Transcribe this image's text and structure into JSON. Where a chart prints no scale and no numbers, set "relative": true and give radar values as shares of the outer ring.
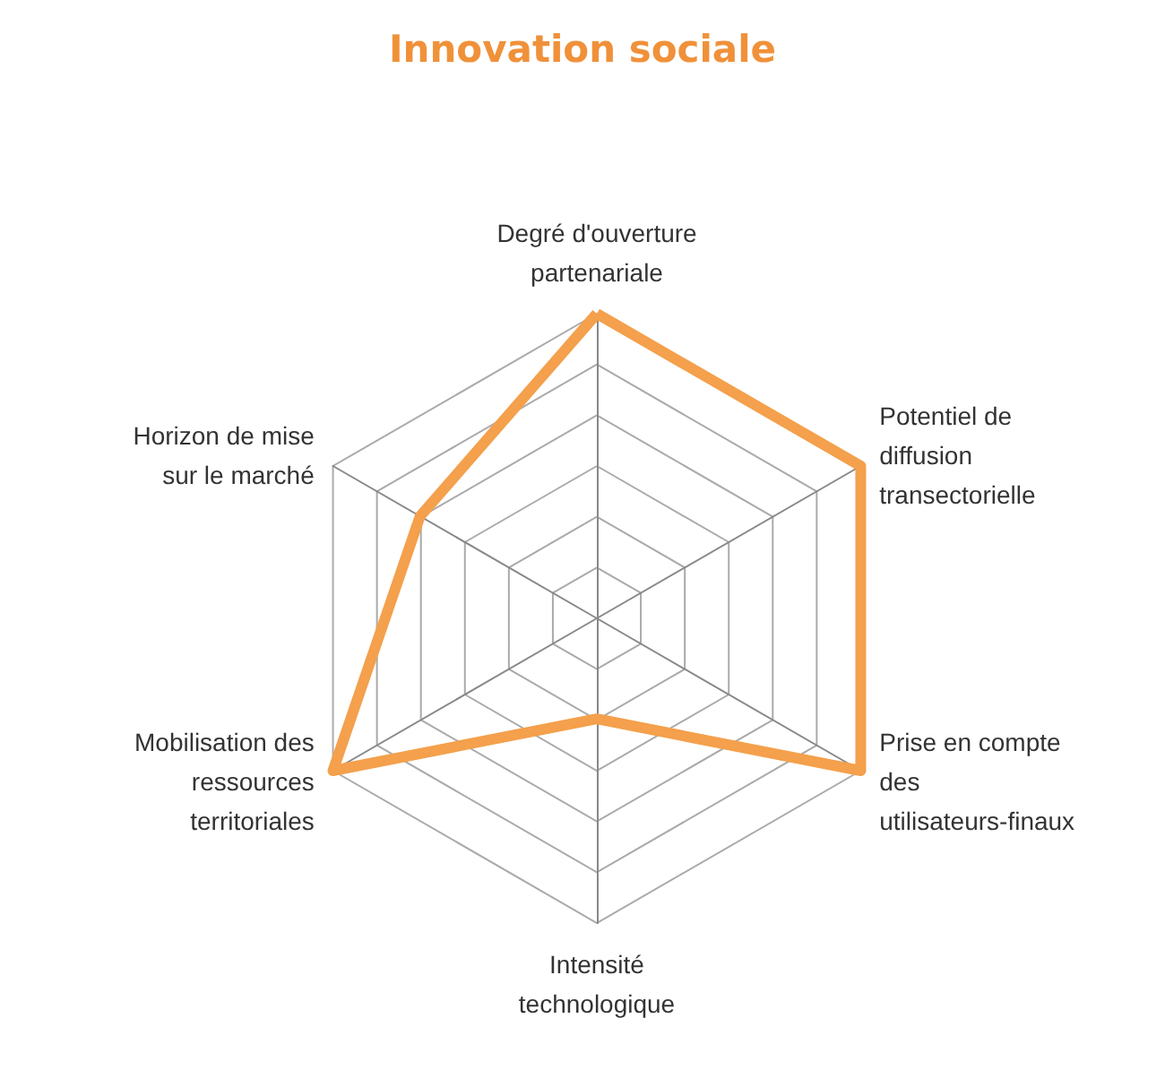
{
  "chart_data": {
    "type": "radar",
    "title": "Innovation sociale",
    "relative": true,
    "marker": "none",
    "grid": true,
    "categories": [
      "Degré d'ouverture partenariale",
      "Potentiel de diffusion transectorielle",
      "Prise en compte des utilisateurs-finaux",
      "Intensité technologique",
      "Mobilisation des ressources territoriales",
      "Horizon de mise sur le marché"
    ],
    "series": [
      {
        "color": "#f4a04c",
        "values": [
          1,
          1,
          1,
          0.33,
          1,
          0.67
        ]
      }
    ]
  }
}
